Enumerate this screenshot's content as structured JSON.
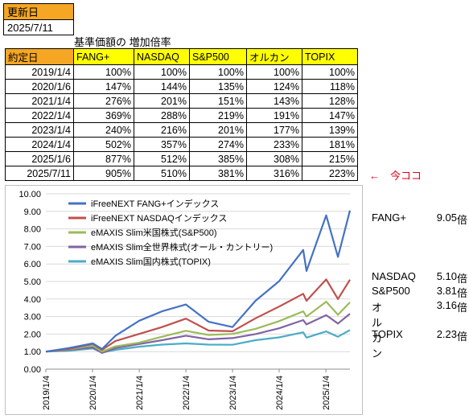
{
  "update": {
    "label": "更新日",
    "value": "2025/7/11"
  },
  "table_title": "基準価額の 増加倍率",
  "table": {
    "headers": [
      "約定日",
      "FANG+",
      "NASDAQ",
      "S&P500",
      "オルカン",
      "TOPIX"
    ],
    "rows": [
      [
        "2019/1/4",
        "100%",
        "100%",
        "100%",
        "100%",
        "100%"
      ],
      [
        "2020/1/6",
        "147%",
        "144%",
        "135%",
        "124%",
        "118%"
      ],
      [
        "2021/1/4",
        "276%",
        "201%",
        "151%",
        "143%",
        "128%"
      ],
      [
        "2022/1/4",
        "369%",
        "288%",
        "219%",
        "191%",
        "147%"
      ],
      [
        "2023/1/4",
        "240%",
        "216%",
        "201%",
        "177%",
        "139%"
      ],
      [
        "2024/1/4",
        "502%",
        "357%",
        "274%",
        "233%",
        "181%"
      ],
      [
        "2025/1/6",
        "877%",
        "512%",
        "385%",
        "308%",
        "215%"
      ],
      [
        "2025/7/11",
        "905%",
        "510%",
        "381%",
        "316%",
        "223%"
      ]
    ]
  },
  "arrow_note": "←　今ココ",
  "colors": {
    "fang": "#4472c4",
    "nasdaq": "#c0504d",
    "sp500": "#9bbb59",
    "orcan": "#8064a2",
    "topix": "#4bacc6"
  },
  "chart_data": {
    "type": "line",
    "title": "",
    "xlabel": "",
    "ylabel": "",
    "ylim": [
      0,
      10
    ],
    "yticks": [
      "0.00",
      "1.00",
      "2.00",
      "3.00",
      "4.00",
      "5.00",
      "6.00",
      "7.00",
      "8.00",
      "9.00",
      "10.00"
    ],
    "xticks": [
      "2019/1/4",
      "2020/1/4",
      "2021/1/4",
      "2022/1/4",
      "2023/1/4",
      "2024/1/4",
      "2025/1/4"
    ],
    "grid": true,
    "legend_position": "top-left",
    "x": [
      "2019/1/4",
      "2019/7/1",
      "2020/1/6",
      "2020/3/19",
      "2020/7/1",
      "2021/1/4",
      "2021/7/1",
      "2022/1/4",
      "2022/7/1",
      "2023/1/4",
      "2023/7/3",
      "2024/1/4",
      "2024/7/10",
      "2024/8/5",
      "2025/1/6",
      "2025/4/8",
      "2025/7/11"
    ],
    "series": [
      {
        "name": "iFreeNEXT FANG+インデックス",
        "values": [
          1.0,
          1.2,
          1.47,
          1.15,
          1.9,
          2.76,
          3.3,
          3.69,
          2.7,
          2.4,
          3.9,
          5.02,
          6.8,
          5.6,
          8.77,
          6.4,
          9.05
        ]
      },
      {
        "name": "iFreeNEXT NASDAQインデックス",
        "values": [
          1.0,
          1.15,
          1.44,
          1.1,
          1.6,
          2.01,
          2.4,
          2.88,
          2.2,
          2.16,
          2.9,
          3.57,
          4.3,
          3.9,
          5.12,
          4.0,
          5.1
        ]
      },
      {
        "name": "eMAXIS Slim米国株式(S&P500)",
        "values": [
          1.0,
          1.13,
          1.35,
          1.0,
          1.3,
          1.51,
          1.85,
          2.19,
          1.95,
          2.01,
          2.3,
          2.74,
          3.3,
          3.0,
          3.85,
          3.1,
          3.81
        ]
      },
      {
        "name": "eMAXIS Slim全世界株式(オール・カントリー)",
        "values": [
          1.0,
          1.1,
          1.24,
          0.92,
          1.2,
          1.43,
          1.65,
          1.91,
          1.7,
          1.77,
          2.0,
          2.33,
          2.8,
          2.55,
          3.08,
          2.6,
          3.16
        ]
      },
      {
        "name": "eMAXIS Slim国内株式(TOPIX)",
        "values": [
          1.0,
          1.05,
          1.18,
          0.95,
          1.1,
          1.28,
          1.4,
          1.47,
          1.4,
          1.39,
          1.65,
          1.81,
          2.1,
          1.8,
          2.15,
          1.85,
          2.23
        ]
      }
    ]
  },
  "multipliers": [
    {
      "name": "FANG+",
      "value": "9.05",
      "unit": "倍"
    },
    {
      "name": "NASDAQ",
      "value": "5.10",
      "unit": "倍"
    },
    {
      "name": "S&P500",
      "value": "3.81",
      "unit": "倍"
    },
    {
      "name": "オルカン",
      "value": "3.16",
      "unit": "倍"
    },
    {
      "name": "TOPIX",
      "value": "2.23",
      "unit": "倍"
    }
  ]
}
